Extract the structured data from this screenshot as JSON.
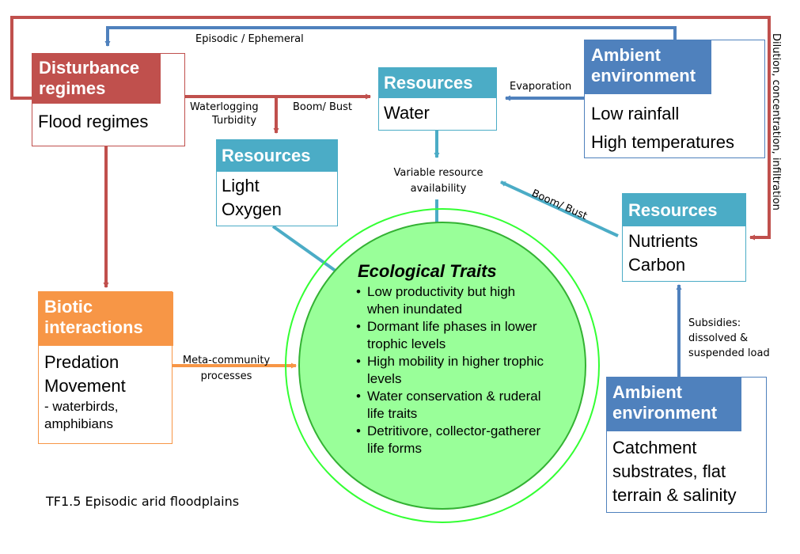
{
  "colors": {
    "disturbance": "#C0504D",
    "resources": "#4BACC6",
    "ambient": "#4F81BD",
    "biotic": "#F79646",
    "ecological_fill": "#99FF99",
    "ecological_ring": "#33FF33"
  },
  "boxes": {
    "disturbance": {
      "title": "Disturbance regimes",
      "items": [
        "Flood regimes"
      ]
    },
    "resources_water": {
      "title": "Resources",
      "items": [
        "Water"
      ]
    },
    "resources_light": {
      "title": "Resources",
      "items": [
        "Light",
        "Oxygen"
      ]
    },
    "resources_nutrients": {
      "title": "Resources",
      "items": [
        "Nutrients",
        "Carbon"
      ]
    },
    "ambient_top": {
      "title": "Ambient environment",
      "items": [
        "Low rainfall",
        "High temperatures"
      ]
    },
    "ambient_bottom": {
      "title": "Ambient environment",
      "items": [
        "Catchment substrates, flat terrain & salinity"
      ]
    },
    "biotic": {
      "title": "Biotic interactions",
      "items": [
        "Predation",
        "Movement"
      ],
      "note": "- waterbirds, amphibians"
    }
  },
  "traits": {
    "title": "Ecological Traits",
    "items": [
      "Low productivity but high when inundated",
      "Dormant life phases in lower trophic levels",
      "High mobility in higher trophic levels",
      "Water conservation & ruderal life traits",
      "Detritivore, collector-gatherer life forms"
    ]
  },
  "labels": {
    "episodic": "Episodic / Ephemeral",
    "dilution": "Dilution, concentration, infiltration",
    "evaporation": "Evaporation",
    "waterlogging": "Waterlogging",
    "turbidity": "Turbidity",
    "boom_bust_top": "Boom/ Bust",
    "boom_bust_right": "Boom/ Bust",
    "variable_resource": "Variable resource availability",
    "subsidies": "Subsidies: dissolved & suspended load",
    "meta_community": "Meta-community processes"
  },
  "caption": "TF1.5 Episodic arid floodplains"
}
